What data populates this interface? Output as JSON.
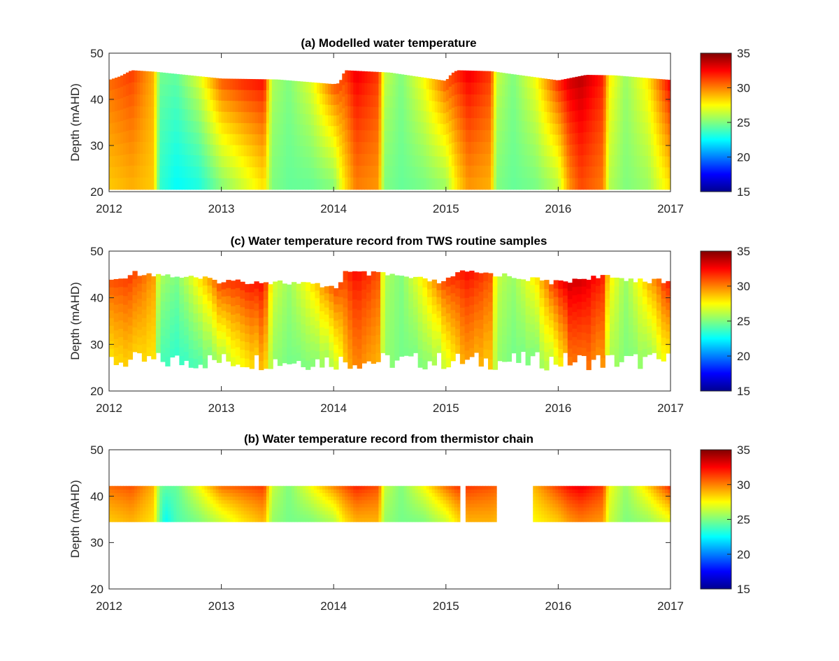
{
  "chart_data": [
    {
      "type": "heatmap",
      "title": "(a) Modelled water temperature",
      "ylabel": "Depth (mAHD)",
      "xlim": [
        2012,
        2017
      ],
      "ylim": [
        20,
        50
      ],
      "x_ticks": [
        "2012",
        "2013",
        "2014",
        "2015",
        "2016",
        "2017"
      ],
      "y_ticks": [
        "20",
        "30",
        "40",
        "50"
      ],
      "colorbar": {
        "range": [
          15,
          35
        ],
        "ticks": [
          "15",
          "20",
          "25",
          "30",
          "35"
        ],
        "colormap": "jet"
      },
      "bottom_depth": 20.5,
      "surface_level": {
        "x": [
          2012.0,
          2012.1,
          2012.2,
          2012.4,
          2013.0,
          2013.5,
          2014.0,
          2014.05,
          2014.1,
          2014.5,
          2015.0,
          2015.05,
          2015.1,
          2015.4,
          2016.0,
          2016.25,
          2016.5,
          2017.0
        ],
        "y": [
          44.2,
          45.0,
          46.3,
          46.0,
          44.5,
          44.3,
          43.3,
          43.5,
          46.3,
          45.8,
          44.0,
          45.6,
          46.3,
          46.1,
          44.1,
          45.3,
          45.2,
          44.2
        ]
      },
      "temperature_profile_c": {
        "t": [
          2012.0,
          2012.2,
          2012.4,
          2012.45,
          2012.6,
          2012.8,
          2013.0,
          2013.2,
          2013.38,
          2013.45,
          2013.6,
          2013.8,
          2014.0,
          2014.1,
          2014.2,
          2014.4,
          2014.45,
          2014.6,
          2014.8,
          2015.0,
          2015.1,
          2015.2,
          2015.4,
          2015.45,
          2015.6,
          2015.8,
          2016.0,
          2016.1,
          2016.2,
          2016.4,
          2016.45,
          2016.6,
          2016.8,
          2017.0
        ],
        "surface": [
          30.5,
          31.5,
          29.0,
          24.8,
          24.5,
          27.0,
          31.0,
          32.0,
          32.5,
          26.0,
          25.0,
          27.0,
          31.0,
          31.5,
          33.0,
          31.5,
          26.5,
          25.0,
          27.5,
          31.0,
          32.0,
          33.0,
          31.5,
          26.5,
          25.0,
          27.5,
          32.0,
          33.5,
          34.0,
          32.0,
          28.0,
          25.5,
          28.0,
          33.0
        ],
        "bottom": [
          28.5,
          29.0,
          28.5,
          23.5,
          22.5,
          23.0,
          25.0,
          26.5,
          28.0,
          25.0,
          24.5,
          24.5,
          25.0,
          28.0,
          30.0,
          29.5,
          25.0,
          24.5,
          24.8,
          25.5,
          28.0,
          29.5,
          29.0,
          25.0,
          24.5,
          24.8,
          26.0,
          29.5,
          31.0,
          30.0,
          26.0,
          25.0,
          25.5,
          28.0
        ]
      }
    },
    {
      "type": "heatmap",
      "title": "(c) Water temperature record from TWS routine samples",
      "ylabel": "Depth (mAHD)",
      "xlim": [
        2012,
        2017
      ],
      "ylim": [
        20,
        50
      ],
      "x_ticks": [
        "2012",
        "2013",
        "2014",
        "2015",
        "2016",
        "2017"
      ],
      "y_ticks": [
        "20",
        "30",
        "40",
        "50"
      ],
      "colorbar": {
        "range": [
          15,
          35
        ],
        "ticks": [
          "15",
          "20",
          "25",
          "30",
          "35"
        ],
        "colormap": "jet"
      },
      "sampling": "fortnightly profiles",
      "bottom_depth_range": [
        24.5,
        28.5
      ],
      "temperature_profile_c": {
        "t": [
          2012.0,
          2012.2,
          2012.4,
          2012.45,
          2012.6,
          2012.8,
          2013.0,
          2013.2,
          2013.38,
          2013.45,
          2013.6,
          2013.8,
          2014.0,
          2014.1,
          2014.2,
          2014.4,
          2014.45,
          2014.6,
          2014.8,
          2015.0,
          2015.1,
          2015.2,
          2015.4,
          2015.45,
          2015.6,
          2015.8,
          2016.0,
          2016.1,
          2016.2,
          2016.4,
          2016.45,
          2016.6,
          2016.8,
          2017.0
        ],
        "surface": [
          31.0,
          31.5,
          29.5,
          26.0,
          25.0,
          28.0,
          31.5,
          32.0,
          32.5,
          27.0,
          25.5,
          28.0,
          31.0,
          31.5,
          32.5,
          31.0,
          26.0,
          25.0,
          28.0,
          31.5,
          32.0,
          32.5,
          31.0,
          26.5,
          25.5,
          28.0,
          32.5,
          33.5,
          33.5,
          32.0,
          28.0,
          25.5,
          29.0,
          32.5
        ],
        "bottom": [
          28.0,
          28.5,
          28.0,
          24.0,
          23.5,
          24.0,
          26.0,
          27.5,
          29.0,
          25.5,
          24.8,
          25.0,
          26.0,
          28.5,
          30.0,
          29.0,
          25.5,
          24.8,
          25.0,
          26.5,
          28.5,
          29.5,
          28.5,
          25.5,
          24.8,
          25.0,
          27.0,
          30.0,
          30.5,
          29.5,
          26.0,
          25.0,
          25.5,
          28.0
        ]
      }
    },
    {
      "type": "heatmap",
      "title": "(b) Water temperature record from thermistor chain",
      "ylabel": "Depth (mAHD)",
      "xlim": [
        2012,
        2017
      ],
      "ylim": [
        20,
        50
      ],
      "x_ticks": [
        "2012",
        "2013",
        "2014",
        "2015",
        "2016",
        "2017"
      ],
      "y_ticks": [
        "20",
        "30",
        "40",
        "50"
      ],
      "colorbar": {
        "range": [
          15,
          35
        ],
        "ticks": [
          "15",
          "20",
          "25",
          "30",
          "35"
        ],
        "colormap": "jet"
      },
      "depth_range": [
        34.5,
        42.2
      ],
      "data_segments": [
        [
          2012.0,
          2015.13
        ],
        [
          2015.18,
          2015.46
        ],
        [
          2015.78,
          2017.0
        ]
      ],
      "temperature_profile_c": {
        "t": [
          2012.0,
          2012.2,
          2012.4,
          2012.45,
          2012.5,
          2012.6,
          2012.8,
          2013.0,
          2013.2,
          2013.38,
          2013.45,
          2013.6,
          2013.8,
          2014.0,
          2014.1,
          2014.2,
          2014.4,
          2014.45,
          2014.6,
          2014.8,
          2015.0,
          2015.1,
          2015.2,
          2015.4,
          2015.78,
          2016.0,
          2016.1,
          2016.2,
          2016.4,
          2016.45,
          2016.6,
          2016.8,
          2017.0
        ],
        "surface": [
          30.5,
          31.0,
          29.0,
          25.0,
          24.5,
          24.5,
          27.5,
          30.5,
          31.0,
          31.5,
          26.5,
          25.0,
          27.5,
          30.0,
          31.0,
          32.0,
          31.0,
          26.5,
          25.0,
          27.5,
          30.5,
          31.5,
          31.5,
          31.0,
          29.0,
          31.5,
          32.5,
          33.0,
          31.5,
          27.5,
          25.5,
          28.5,
          32.0
        ],
        "bottom": [
          28.5,
          29.0,
          28.0,
          24.5,
          22.5,
          24.0,
          25.0,
          26.5,
          28.0,
          29.0,
          25.5,
          24.8,
          25.0,
          26.0,
          28.0,
          29.0,
          29.0,
          25.5,
          24.8,
          25.0,
          26.5,
          28.0,
          29.0,
          29.0,
          27.5,
          28.5,
          29.5,
          30.0,
          29.5,
          26.5,
          25.0,
          25.5,
          27.0
        ]
      }
    }
  ]
}
